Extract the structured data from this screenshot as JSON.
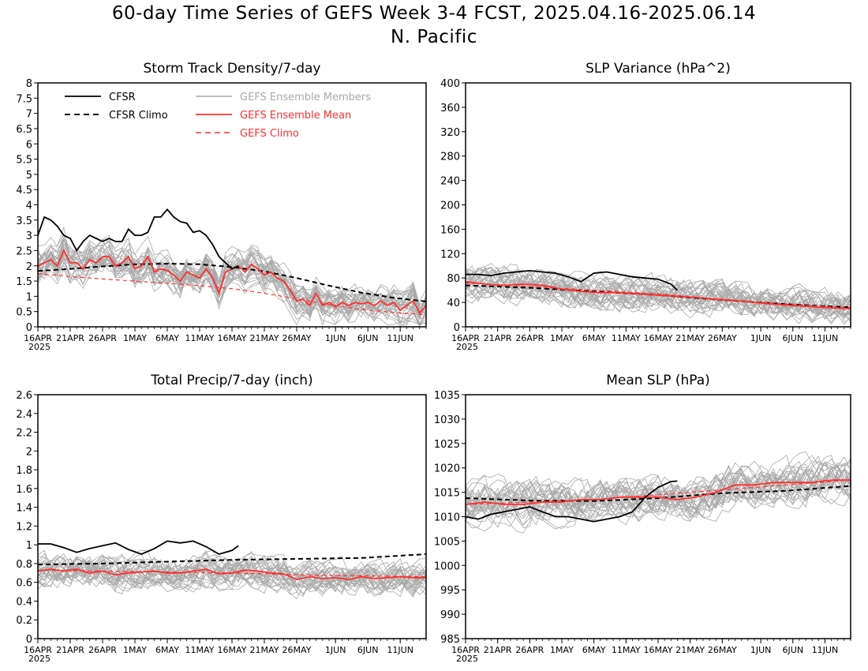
{
  "figure": {
    "title_line1": "60-day Time Series of GEFS Week 3-4 FCST, 2025.04.16-2025.06.14",
    "title_line2": "N. Pacific"
  },
  "colors": {
    "cfsr": "#000000",
    "members": "#a8a8a8",
    "gefs_mean": "#ff3030",
    "gefs_climo": "#ff3030"
  },
  "legend": {
    "cfsr": "CFSR",
    "cfsr_climo": "CFSR Climo",
    "members": "GEFS Ensemble Members",
    "gefs_mean": "GEFS Ensemble Mean",
    "gefs_climo": "GEFS Climo"
  },
  "x_axis": {
    "n_days": 60,
    "tick_labels": [
      "16APR",
      "21APR",
      "26APR",
      "1MAY",
      "6MAY",
      "11MAY",
      "16MAY",
      "21MAY",
      "26MAY",
      "1JUN",
      "6JUN",
      "11JUN"
    ],
    "tick_days": [
      0,
      5,
      10,
      15,
      20,
      25,
      30,
      35,
      40,
      46,
      51,
      56
    ],
    "year_label": "2025"
  },
  "chart_data": [
    {
      "type": "line",
      "title": "Storm Track Density/7-day",
      "ylim": [
        0,
        8
      ],
      "yticks": [
        0,
        0.5,
        1,
        1.5,
        2,
        2.5,
        3,
        3.5,
        4,
        4.5,
        5,
        5.5,
        6,
        6.5,
        7,
        7.5,
        8
      ],
      "ytick_labels": [
        "0",
        "0.5",
        "1",
        "1.5",
        "2",
        "2.5",
        "3",
        "3.5",
        "4",
        "4.5",
        "5",
        "5.5",
        "6",
        "6.5",
        "7",
        "7.5",
        "8"
      ],
      "show_legend": true,
      "series": [
        {
          "name": "CFSR",
          "style": "solid",
          "color_key": "cfsr",
          "x": [
            0,
            1,
            2,
            3,
            4,
            5,
            6,
            7,
            8,
            9,
            10,
            11,
            12,
            13,
            14,
            15,
            16,
            17,
            18,
            19,
            20,
            21,
            22,
            23,
            24,
            25,
            26,
            27,
            28,
            29,
            30,
            31
          ],
          "values": [
            3.0,
            3.6,
            3.5,
            3.3,
            3.0,
            2.9,
            2.5,
            2.8,
            3.0,
            2.9,
            2.8,
            2.9,
            2.8,
            2.8,
            3.2,
            3.0,
            3.0,
            3.1,
            3.6,
            3.6,
            3.85,
            3.6,
            3.45,
            3.4,
            3.1,
            3.15,
            3.0,
            2.7,
            2.3,
            2.1,
            1.9,
            2.0
          ]
        },
        {
          "name": "CFSR Climo",
          "style": "dash",
          "color_key": "cfsr",
          "x": [
            0,
            5,
            10,
            15,
            20,
            25,
            30,
            35,
            40,
            45,
            50,
            55,
            60
          ],
          "values": [
            1.83,
            1.9,
            1.98,
            2.05,
            2.07,
            2.05,
            1.96,
            1.82,
            1.6,
            1.35,
            1.12,
            0.95,
            0.83
          ]
        },
        {
          "name": "GEFS Ensemble Mean",
          "style": "solid",
          "color_key": "gefs_mean",
          "x": [
            0,
            1,
            2,
            3,
            4,
            5,
            6,
            7,
            8,
            9,
            10,
            11,
            12,
            13,
            14,
            15,
            16,
            17,
            18,
            19,
            20,
            21,
            22,
            23,
            24,
            25,
            26,
            27,
            28,
            29,
            30,
            31,
            32,
            33,
            34,
            35,
            36,
            37,
            38,
            39,
            40,
            41,
            42,
            43,
            44,
            45,
            46,
            47,
            48,
            49,
            50,
            51,
            52,
            53,
            54,
            55,
            56,
            57,
            58,
            59,
            60
          ],
          "values": [
            2.0,
            2.1,
            2.2,
            2.0,
            2.5,
            2.1,
            2.1,
            1.9,
            2.2,
            2.1,
            2.3,
            2.3,
            2.0,
            2.1,
            2.3,
            1.9,
            2.0,
            2.3,
            1.8,
            1.9,
            1.85,
            1.7,
            1.5,
            1.8,
            1.7,
            1.6,
            1.9,
            1.6,
            1.1,
            1.8,
            1.9,
            2.0,
            1.8,
            2.05,
            1.9,
            1.7,
            1.8,
            1.6,
            1.5,
            1.2,
            0.85,
            0.9,
            0.7,
            1.1,
            0.7,
            0.8,
            0.65,
            0.8,
            0.7,
            0.8,
            0.75,
            0.8,
            0.7,
            0.85,
            0.7,
            0.8,
            0.55,
            0.7,
            0.85,
            0.45,
            0.7
          ]
        },
        {
          "name": "GEFS Climo",
          "style": "dash",
          "color_key": "gefs_climo",
          "x": [
            0,
            5,
            10,
            15,
            20,
            25,
            30,
            35,
            40,
            45,
            50,
            55,
            60
          ],
          "values": [
            1.75,
            1.65,
            1.57,
            1.5,
            1.43,
            1.35,
            1.25,
            1.1,
            0.92,
            0.72,
            0.57,
            0.47,
            0.4
          ]
        }
      ],
      "members_summary": {
        "count": 30,
        "base_series": "GEFS Ensemble Mean",
        "spread": 0.9,
        "ymin": 0
      }
    },
    {
      "type": "line",
      "title": "SLP Variance (hPa^2)",
      "ylim": [
        0,
        400
      ],
      "yticks": [
        0,
        40,
        80,
        120,
        160,
        200,
        240,
        280,
        320,
        360,
        400
      ],
      "ytick_labels": [
        "0",
        "40",
        "80",
        "120",
        "160",
        "200",
        "240",
        "280",
        "320",
        "360",
        "400"
      ],
      "show_legend": false,
      "series": [
        {
          "name": "CFSR",
          "style": "solid",
          "color_key": "cfsr",
          "x": [
            0,
            2,
            4,
            6,
            8,
            10,
            12,
            14,
            16,
            18,
            20,
            22,
            24,
            26,
            28,
            30,
            32,
            33
          ],
          "values": [
            86,
            86,
            84,
            88,
            90,
            92,
            90,
            88,
            82,
            74,
            88,
            90,
            86,
            82,
            80,
            78,
            70,
            60
          ]
        },
        {
          "name": "CFSR Climo",
          "style": "dash",
          "color_key": "cfsr",
          "x": [
            0,
            10,
            20,
            30,
            40,
            50,
            60
          ],
          "values": [
            68,
            64,
            58,
            52,
            44,
            37,
            32
          ]
        },
        {
          "name": "GEFS Ensemble Mean",
          "style": "solid",
          "color_key": "gefs_mean",
          "x": [
            0,
            3,
            6,
            9,
            12,
            15,
            18,
            21,
            24,
            27,
            30,
            33,
            36,
            39,
            42,
            45,
            48,
            51,
            54,
            57,
            60
          ],
          "values": [
            74,
            70,
            68,
            70,
            68,
            62,
            58,
            56,
            56,
            54,
            52,
            50,
            48,
            45,
            43,
            40,
            37,
            35,
            33,
            31,
            30
          ]
        },
        {
          "name": "GEFS Climo",
          "style": "dash",
          "color_key": "gefs_climo",
          "x": [
            0,
            10,
            20,
            30,
            40,
            50,
            60
          ],
          "values": [
            72,
            66,
            60,
            54,
            45,
            37,
            31
          ]
        }
      ],
      "members_summary": {
        "count": 30,
        "base_series": "GEFS Ensemble Mean",
        "spread": 45,
        "ymin": 0
      }
    },
    {
      "type": "line",
      "title": "Total Precip/7-day (inch)",
      "ylim": [
        0,
        2.6
      ],
      "yticks": [
        0,
        0.2,
        0.4,
        0.6,
        0.8,
        1,
        1.2,
        1.4,
        1.6,
        1.8,
        2,
        2.2,
        2.4,
        2.6
      ],
      "ytick_labels": [
        "0",
        "0.2",
        "0.4",
        "0.6",
        "0.8",
        "1",
        "1.2",
        "1.4",
        "1.6",
        "1.8",
        "2",
        "2.2",
        "2.4",
        "2.6"
      ],
      "show_legend": false,
      "series": [
        {
          "name": "CFSR",
          "style": "solid",
          "color_key": "cfsr",
          "x": [
            0,
            2,
            4,
            6,
            8,
            10,
            12,
            14,
            16,
            18,
            20,
            22,
            24,
            26,
            28,
            30,
            31
          ],
          "values": [
            1.01,
            1.01,
            0.97,
            0.92,
            0.96,
            0.99,
            1.02,
            0.95,
            0.9,
            0.96,
            1.04,
            1.02,
            1.04,
            0.98,
            0.9,
            0.94,
            0.99
          ]
        },
        {
          "name": "CFSR Climo",
          "style": "dash",
          "color_key": "cfsr",
          "x": [
            0,
            10,
            20,
            30,
            40,
            50,
            60
          ],
          "values": [
            0.79,
            0.8,
            0.82,
            0.84,
            0.85,
            0.86,
            0.9
          ]
        },
        {
          "name": "GEFS Ensemble Mean",
          "style": "solid",
          "color_key": "gefs_mean",
          "x": [
            0,
            2,
            4,
            6,
            8,
            10,
            12,
            14,
            16,
            18,
            20,
            22,
            24,
            26,
            28,
            30,
            32,
            34,
            36,
            38,
            40,
            42,
            44,
            46,
            48,
            50,
            52,
            54,
            56,
            58,
            60
          ],
          "values": [
            0.72,
            0.74,
            0.72,
            0.74,
            0.7,
            0.72,
            0.68,
            0.7,
            0.71,
            0.72,
            0.7,
            0.7,
            0.72,
            0.74,
            0.69,
            0.7,
            0.73,
            0.72,
            0.7,
            0.69,
            0.63,
            0.66,
            0.64,
            0.65,
            0.63,
            0.66,
            0.64,
            0.65,
            0.66,
            0.65,
            0.65
          ]
        },
        {
          "name": "GEFS Climo",
          "style": "dash",
          "color_key": "gefs_climo",
          "x": [
            0,
            10,
            20,
            30,
            40,
            50,
            60
          ],
          "values": [
            0.73,
            0.72,
            0.71,
            0.7,
            0.68,
            0.67,
            0.66
          ]
        }
      ],
      "members_summary": {
        "count": 30,
        "base_series": "GEFS Ensemble Mean",
        "spread": 0.28,
        "ymin": 0
      }
    },
    {
      "type": "line",
      "title": "Mean SLP (hPa)",
      "ylim": [
        985,
        1035
      ],
      "yticks": [
        985,
        990,
        995,
        1000,
        1005,
        1010,
        1015,
        1020,
        1025,
        1030,
        1035
      ],
      "ytick_labels": [
        "985",
        "990",
        "995",
        "1000",
        "1005",
        "1010",
        "1015",
        "1020",
        "1025",
        "1030",
        "1035"
      ],
      "show_legend": false,
      "series": [
        {
          "name": "CFSR",
          "style": "solid",
          "color_key": "cfsr",
          "x": [
            0,
            2,
            4,
            6,
            8,
            10,
            12,
            14,
            16,
            18,
            20,
            22,
            24,
            26,
            28,
            30,
            32,
            33
          ],
          "values": [
            1010,
            1009.5,
            1010.5,
            1011,
            1011.5,
            1012,
            1011,
            1010,
            1010,
            1009.5,
            1009,
            1009.5,
            1010,
            1011,
            1014,
            1016,
            1017.2,
            1017.3
          ]
        },
        {
          "name": "CFSR Climo",
          "style": "dash",
          "color_key": "cfsr",
          "x": [
            0,
            10,
            20,
            30,
            40,
            50,
            60
          ],
          "values": [
            1013.8,
            1013.3,
            1013.2,
            1013.8,
            1014.8,
            1015.3,
            1016.3
          ]
        },
        {
          "name": "GEFS Ensemble Mean",
          "style": "solid",
          "color_key": "gefs_mean",
          "x": [
            0,
            3,
            6,
            9,
            12,
            15,
            18,
            21,
            24,
            27,
            30,
            33,
            36,
            39,
            42,
            45,
            48,
            51,
            54,
            57,
            60
          ],
          "values": [
            1012.5,
            1013,
            1012.5,
            1012.5,
            1013,
            1013,
            1013.5,
            1013.5,
            1014,
            1014,
            1014,
            1013.5,
            1014,
            1015,
            1016.5,
            1016.5,
            1017,
            1017,
            1017,
            1017.5,
            1017.5
          ]
        },
        {
          "name": "GEFS Climo",
          "style": "dash",
          "color_key": "gefs_climo",
          "x": [
            0,
            10,
            20,
            30,
            40,
            50,
            60
          ],
          "values": [
            1012.5,
            1013,
            1013.5,
            1014.5,
            1015.5,
            1016.5,
            1017.5
          ]
        }
      ],
      "members_summary": {
        "count": 30,
        "base_series": "GEFS Ensemble Mean",
        "spread": 7,
        "ymin": 985
      }
    }
  ]
}
